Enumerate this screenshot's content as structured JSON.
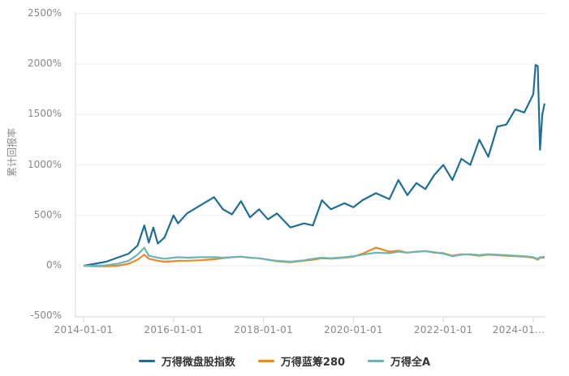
{
  "chart_data": {
    "type": "line",
    "title": "",
    "xlabel": "",
    "ylabel": "累计回报率",
    "ylim": [
      -500,
      2500
    ],
    "yticks": [
      "2500%",
      "2000%",
      "1500%",
      "1000%",
      "500%",
      "0%",
      "-500%"
    ],
    "ytick_values": [
      2500,
      2000,
      1500,
      1000,
      500,
      0,
      -500
    ],
    "xticks": [
      "2014-01-01",
      "2016-01-01",
      "2018-01-01",
      "2020-01-01",
      "2022-01-01",
      "2024-01..."
    ],
    "xtick_years": [
      2014,
      2016,
      2018,
      2020,
      2022,
      2024
    ],
    "xlim": [
      2013.9,
      2024.35
    ],
    "grid": {
      "horizontal": true,
      "vertical": false
    },
    "legend_position": "bottom",
    "x": [
      2014.0,
      2014.25,
      2014.5,
      2014.75,
      2015.0,
      2015.2,
      2015.35,
      2015.45,
      2015.55,
      2015.65,
      2015.8,
      2016.0,
      2016.1,
      2016.3,
      2016.6,
      2016.9,
      2017.1,
      2017.3,
      2017.5,
      2017.7,
      2017.9,
      2018.1,
      2018.3,
      2018.6,
      2018.9,
      2019.1,
      2019.3,
      2019.5,
      2019.8,
      2020.0,
      2020.2,
      2020.5,
      2020.8,
      2021.0,
      2021.2,
      2021.4,
      2021.6,
      2021.8,
      2022.0,
      2022.2,
      2022.4,
      2022.6,
      2022.8,
      2023.0,
      2023.2,
      2023.4,
      2023.6,
      2023.8,
      2024.0,
      2024.05,
      2024.1,
      2024.15,
      2024.2,
      2024.25
    ],
    "series": [
      {
        "name": "万得微盘股指数",
        "color": "#1f6e96",
        "values": [
          0,
          20,
          40,
          80,
          120,
          200,
          400,
          230,
          380,
          220,
          280,
          500,
          420,
          520,
          600,
          680,
          560,
          510,
          640,
          480,
          560,
          460,
          520,
          380,
          420,
          400,
          650,
          560,
          620,
          580,
          650,
          720,
          660,
          850,
          700,
          820,
          760,
          900,
          1000,
          850,
          1060,
          1000,
          1250,
          1080,
          1380,
          1400,
          1550,
          1520,
          1700,
          1990,
          1980,
          1150,
          1500,
          1610
        ]
      },
      {
        "name": "万得蓝筹280",
        "color": "#e88a25",
        "values": [
          0,
          -5,
          -5,
          0,
          20,
          60,
          110,
          70,
          60,
          50,
          40,
          45,
          50,
          50,
          55,
          65,
          75,
          85,
          90,
          80,
          75,
          60,
          45,
          35,
          50,
          60,
          75,
          70,
          80,
          90,
          120,
          180,
          140,
          150,
          130,
          140,
          145,
          130,
          125,
          100,
          115,
          110,
          100,
          110,
          105,
          100,
          95,
          90,
          80,
          70,
          60,
          80,
          80,
          80
        ]
      },
      {
        "name": "万得全A",
        "color": "#6ab5b8",
        "values": [
          0,
          0,
          5,
          20,
          50,
          110,
          180,
          100,
          90,
          80,
          70,
          80,
          85,
          80,
          85,
          85,
          80,
          85,
          90,
          80,
          75,
          60,
          50,
          40,
          55,
          70,
          80,
          75,
          85,
          95,
          110,
          130,
          125,
          140,
          130,
          140,
          145,
          135,
          120,
          95,
          110,
          115,
          105,
          115,
          110,
          105,
          100,
          95,
          85,
          75,
          70,
          85,
          85,
          90
        ]
      }
    ]
  },
  "legend": [
    {
      "label": "万得微盘股指数",
      "color": "#1f6e96"
    },
    {
      "label": "万得蓝筹280",
      "color": "#e88a25"
    },
    {
      "label": "万得全A",
      "color": "#6ab5b8"
    }
  ]
}
